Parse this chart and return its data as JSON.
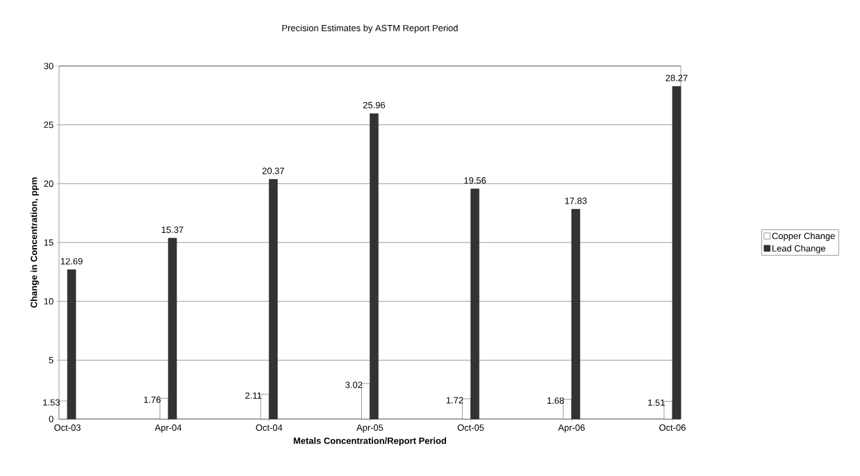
{
  "chart_data": {
    "type": "bar",
    "title": "Precision Estimates by ASTM Report Period",
    "xlabel": "Metals Concentration/Report Period",
    "ylabel": "Change in Concentration, ppm",
    "categories": [
      "Oct-03",
      "Apr-04",
      "Oct-04",
      "Apr-05",
      "Oct-05",
      "Apr-06",
      "Oct-06"
    ],
    "series": [
      {
        "name": "Copper Change",
        "color": "#ffffff",
        "values": [
          1.53,
          1.76,
          2.11,
          3.02,
          1.72,
          1.68,
          1.51
        ]
      },
      {
        "name": "Lead Change",
        "color": "#333333",
        "values": [
          12.69,
          15.37,
          20.37,
          25.96,
          19.56,
          17.83,
          28.27
        ]
      }
    ],
    "ylim": [
      0,
      30
    ],
    "yticks": [
      0,
      5,
      10,
      15,
      20,
      25,
      30
    ],
    "grid": "y",
    "legend": "right",
    "data_labels": true
  }
}
